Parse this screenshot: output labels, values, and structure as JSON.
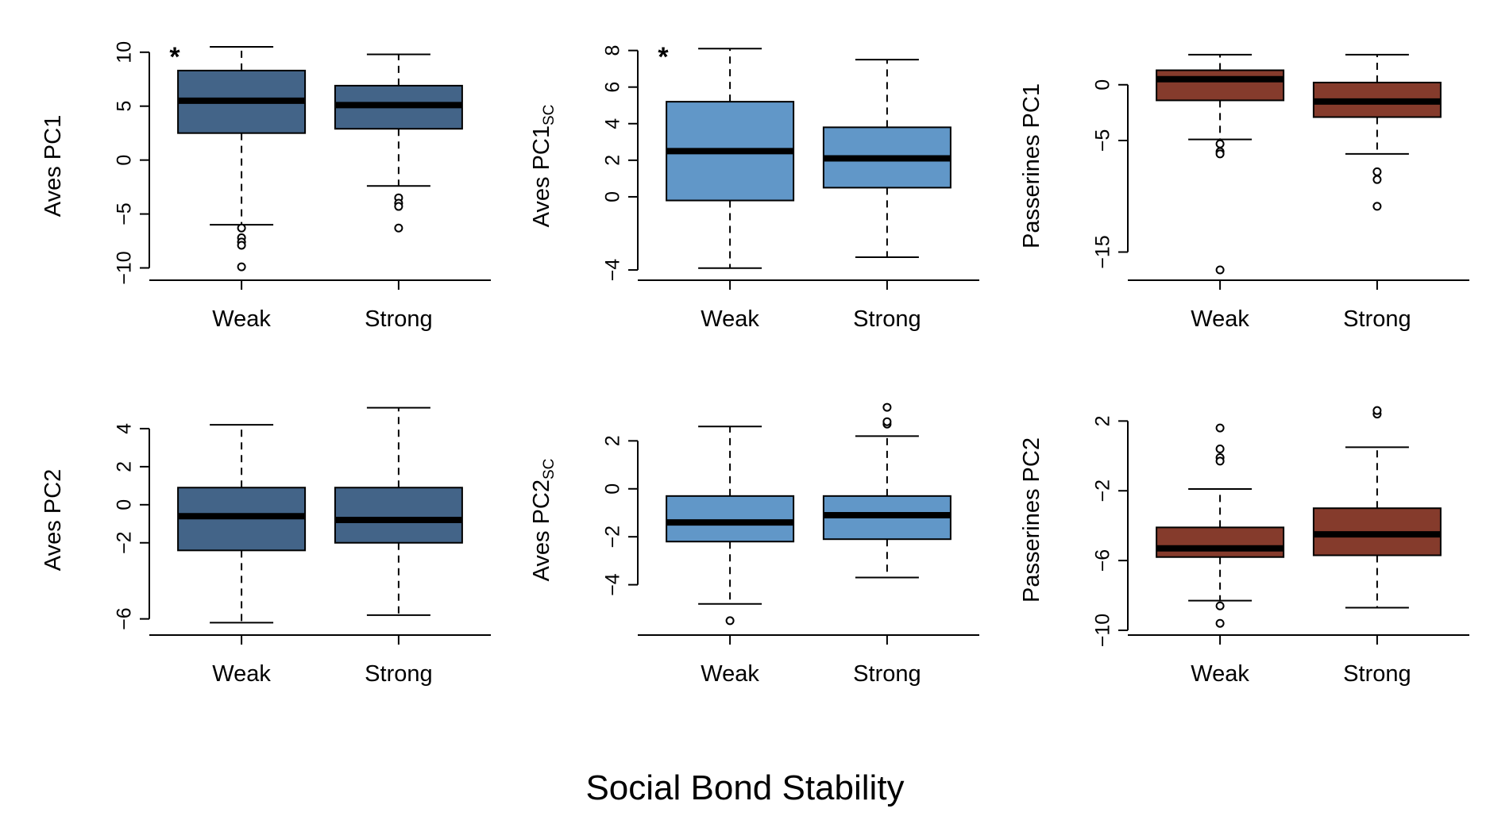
{
  "figure": {
    "xlabel": "Social Bond Stability"
  },
  "colors": {
    "aves": "#436488",
    "aves_sc": "#6197c8",
    "passerines": "#853b2c",
    "median": "#000000",
    "outline": "#000000"
  },
  "chart_data": [
    {
      "type": "boxplot",
      "ylabel": "Aves PC1",
      "ylabel_sub": "",
      "color": "#436488",
      "categories": [
        "Weak",
        "Strong"
      ],
      "yticks": [
        10,
        5,
        0,
        -5,
        -10
      ],
      "ytick_labels": [
        "10",
        "5",
        "0",
        "−5",
        "−10"
      ],
      "ylim": [
        -10.7,
        10.5
      ],
      "significance": "*",
      "boxes": [
        {
          "whisker_low": -6.0,
          "q1": 2.5,
          "median": 5.5,
          "q3": 8.3,
          "whisker_high": 10.5,
          "outliers": [
            -6.3,
            -7.2,
            -7.6,
            -7.9,
            -9.9
          ]
        },
        {
          "whisker_low": -2.4,
          "q1": 2.9,
          "median": 5.1,
          "q3": 6.9,
          "whisker_high": 9.8,
          "outliers": [
            -3.5,
            -4.0,
            -4.3,
            -6.3
          ]
        }
      ]
    },
    {
      "type": "boxplot",
      "ylabel": "Aves PC1",
      "ylabel_sub": "SC",
      "color": "#6197c8",
      "categories": [
        "Weak",
        "Strong"
      ],
      "yticks": [
        8,
        6,
        4,
        2,
        0,
        -4
      ],
      "ytick_labels": [
        "8",
        "6",
        "4",
        "2",
        "0",
        "−4"
      ],
      "ylim": [
        -4.3,
        8.2
      ],
      "significance": "*",
      "boxes": [
        {
          "whisker_low": -3.9,
          "q1": -0.2,
          "median": 2.5,
          "q3": 5.2,
          "whisker_high": 8.1,
          "outliers": []
        },
        {
          "whisker_low": -3.3,
          "q1": 0.5,
          "median": 2.1,
          "q3": 3.8,
          "whisker_high": 7.5,
          "outliers": []
        }
      ]
    },
    {
      "type": "boxplot",
      "ylabel": "Passerines PC1",
      "ylabel_sub": "",
      "color": "#853b2c",
      "categories": [
        "Weak",
        "Strong"
      ],
      "yticks": [
        0,
        -5,
        -15
      ],
      "ytick_labels": [
        "0",
        "−5",
        "−15"
      ],
      "ylim": [
        -17.1,
        3.4
      ],
      "significance": "",
      "boxes": [
        {
          "whisker_low": -4.9,
          "q1": -1.4,
          "median": 0.5,
          "q3": 1.3,
          "whisker_high": 2.7,
          "outliers": [
            -5.3,
            -6.0,
            -6.2,
            -16.6
          ]
        },
        {
          "whisker_low": -6.2,
          "q1": -2.9,
          "median": -1.5,
          "q3": 0.2,
          "whisker_high": 2.7,
          "outliers": [
            -7.8,
            -8.5,
            -10.9
          ]
        }
      ]
    },
    {
      "type": "boxplot",
      "ylabel": "Aves PC2",
      "ylabel_sub": "",
      "color": "#436488",
      "categories": [
        "Weak",
        "Strong"
      ],
      "yticks": [
        4,
        2,
        0,
        -2,
        -6
      ],
      "ytick_labels": [
        "4",
        "2",
        "0",
        "−2",
        "−6"
      ],
      "ylim": [
        -6.6,
        5.5
      ],
      "significance": "",
      "boxes": [
        {
          "whisker_low": -6.2,
          "q1": -2.4,
          "median": -0.6,
          "q3": 0.9,
          "whisker_high": 4.2,
          "outliers": []
        },
        {
          "whisker_low": -5.8,
          "q1": -2.0,
          "median": -0.8,
          "q3": 0.9,
          "whisker_high": 5.1,
          "outliers": []
        }
      ]
    },
    {
      "type": "boxplot",
      "ylabel": "Aves PC2",
      "ylabel_sub": "SC",
      "color": "#6197c8",
      "categories": [
        "Weak",
        "Strong"
      ],
      "yticks": [
        2,
        0,
        -2,
        -4
      ],
      "ytick_labels": [
        "2",
        "0",
        "−2",
        "−4"
      ],
      "ylim": [
        -5.9,
        3.7
      ],
      "significance": "",
      "boxes": [
        {
          "whisker_low": -4.8,
          "q1": -2.2,
          "median": -1.4,
          "q3": -0.3,
          "whisker_high": 2.6,
          "outliers": [
            -5.5
          ]
        },
        {
          "whisker_low": -3.7,
          "q1": -2.1,
          "median": -1.1,
          "q3": -0.3,
          "whisker_high": 2.2,
          "outliers": [
            2.7,
            2.8,
            3.4
          ]
        }
      ]
    },
    {
      "type": "boxplot",
      "ylabel": "Passerines PC2",
      "ylabel_sub": "",
      "color": "#853b2c",
      "categories": [
        "Weak",
        "Strong"
      ],
      "yticks": [
        2,
        -2,
        -6,
        -10
      ],
      "ytick_labels": [
        "2",
        "−2",
        "−6",
        "−10"
      ],
      "ylim": [
        -10.0,
        3.2
      ],
      "significance": "",
      "boxes": [
        {
          "whisker_low": -8.3,
          "q1": -5.8,
          "median": -5.3,
          "q3": -4.1,
          "whisker_high": -1.9,
          "outliers": [
            -0.1,
            -0.3,
            0.4,
            1.6,
            -8.6,
            -9.6
          ]
        },
        {
          "whisker_low": -8.7,
          "q1": -5.7,
          "median": -4.5,
          "q3": -3.0,
          "whisker_high": 0.5,
          "outliers": [
            2.4,
            2.6
          ]
        }
      ]
    }
  ]
}
